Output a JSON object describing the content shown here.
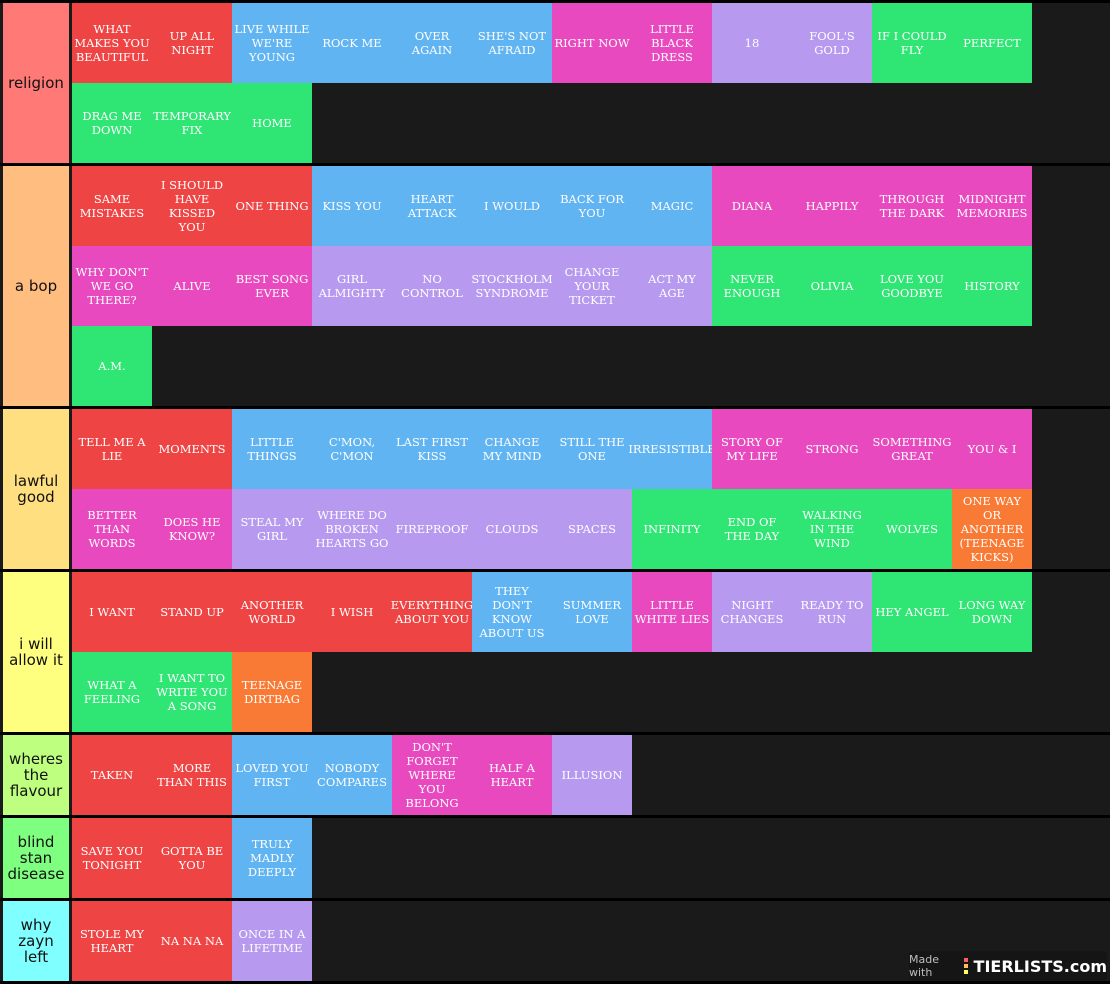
{
  "colors": {
    "red": "#ef4444",
    "blue": "#60b4f2",
    "pink": "#e849bf",
    "lavender": "#b79af0",
    "green": "#2fe574",
    "orange": "#f97a35",
    "background": "#1a1a1a"
  },
  "watermark": {
    "made_with": "Made with",
    "logo": "TIERLISTS.com"
  },
  "tiers": [
    {
      "label": "religion",
      "color": "#ff7a77",
      "items": [
        {
          "t": "WHAT MAKES YOU BEAUTIFUL",
          "c": "red"
        },
        {
          "t": "UP ALL NIGHT",
          "c": "red"
        },
        {
          "t": "LIVE WHILE WE'RE YOUNG",
          "c": "blue"
        },
        {
          "t": "ROCK ME",
          "c": "blue"
        },
        {
          "t": "OVER AGAIN",
          "c": "blue"
        },
        {
          "t": "SHE'S NOT AFRAID",
          "c": "blue"
        },
        {
          "t": "RIGHT NOW",
          "c": "pink"
        },
        {
          "t": "LITTLE BLACK DRESS",
          "c": "pink"
        },
        {
          "t": "18",
          "c": "lavender"
        },
        {
          "t": "FOOL'S GOLD",
          "c": "lavender"
        },
        {
          "t": "IF I COULD FLY",
          "c": "green"
        },
        {
          "t": "PERFECT",
          "c": "green"
        },
        {
          "t": "DRAG ME DOWN",
          "c": "green"
        },
        {
          "t": "TEMPORARY FIX",
          "c": "green"
        },
        {
          "t": "HOME",
          "c": "green"
        }
      ]
    },
    {
      "label": "a bop",
      "color": "#ffbe7f",
      "items": [
        {
          "t": "SAME MISTAKES",
          "c": "red"
        },
        {
          "t": "I SHOULD HAVE KISSED YOU",
          "c": "red"
        },
        {
          "t": "ONE THING",
          "c": "red"
        },
        {
          "t": "KISS YOU",
          "c": "blue"
        },
        {
          "t": "HEART ATTACK",
          "c": "blue"
        },
        {
          "t": "I WOULD",
          "c": "blue"
        },
        {
          "t": "BACK FOR YOU",
          "c": "blue"
        },
        {
          "t": "MAGIC",
          "c": "blue"
        },
        {
          "t": "DIANA",
          "c": "pink"
        },
        {
          "t": "HAPPILY",
          "c": "pink"
        },
        {
          "t": "THROUGH THE DARK",
          "c": "pink"
        },
        {
          "t": "MIDNIGHT MEMORIES",
          "c": "pink"
        },
        {
          "t": "WHY DON'T WE GO THERE?",
          "c": "pink"
        },
        {
          "t": "ALIVE",
          "c": "pink"
        },
        {
          "t": "BEST SONG EVER",
          "c": "pink"
        },
        {
          "t": "GIRL ALMIGHTY",
          "c": "lavender"
        },
        {
          "t": "NO CONTROL",
          "c": "lavender"
        },
        {
          "t": "STOCKHOLM SYNDROME",
          "c": "lavender"
        },
        {
          "t": "CHANGE YOUR TICKET",
          "c": "lavender"
        },
        {
          "t": "ACT MY AGE",
          "c": "lavender"
        },
        {
          "t": "NEVER ENOUGH",
          "c": "green"
        },
        {
          "t": "OLIVIA",
          "c": "green"
        },
        {
          "t": "LOVE YOU GOODBYE",
          "c": "green"
        },
        {
          "t": "HISTORY",
          "c": "green"
        },
        {
          "t": "A.M.",
          "c": "green"
        }
      ]
    },
    {
      "label": "lawful good",
      "color": "#ffdf7f",
      "items": [
        {
          "t": "TELL ME A LIE",
          "c": "red"
        },
        {
          "t": "MOMENTS",
          "c": "red"
        },
        {
          "t": "LITTLE THINGS",
          "c": "blue"
        },
        {
          "t": "C'MON, C'MON",
          "c": "blue"
        },
        {
          "t": "LAST FIRST KISS",
          "c": "blue"
        },
        {
          "t": "CHANGE MY MIND",
          "c": "blue"
        },
        {
          "t": "STILL THE ONE",
          "c": "blue"
        },
        {
          "t": "IRRESISTIBLE",
          "c": "blue"
        },
        {
          "t": "STORY OF MY LIFE",
          "c": "pink"
        },
        {
          "t": "STRONG",
          "c": "pink"
        },
        {
          "t": "SOMETHING GREAT",
          "c": "pink"
        },
        {
          "t": "YOU & I",
          "c": "pink"
        },
        {
          "t": "BETTER THAN WORDS",
          "c": "pink"
        },
        {
          "t": "DOES HE KNOW?",
          "c": "pink"
        },
        {
          "t": "STEAL MY GIRL",
          "c": "lavender"
        },
        {
          "t": "WHERE DO BROKEN HEARTS GO",
          "c": "lavender"
        },
        {
          "t": "FIREPROOF",
          "c": "lavender"
        },
        {
          "t": "CLOUDS",
          "c": "lavender"
        },
        {
          "t": "SPACES",
          "c": "lavender"
        },
        {
          "t": "INFINITY",
          "c": "green"
        },
        {
          "t": "END OF THE DAY",
          "c": "green"
        },
        {
          "t": "WALKING IN THE WIND",
          "c": "green"
        },
        {
          "t": "WOLVES",
          "c": "green"
        },
        {
          "t": "ONE WAY OR ANOTHER (TEENAGE KICKS)",
          "c": "orange"
        }
      ]
    },
    {
      "label": "i will allow it",
      "color": "#ffff7f",
      "items": [
        {
          "t": "I WANT",
          "c": "red"
        },
        {
          "t": "STAND UP",
          "c": "red"
        },
        {
          "t": "ANOTHER WORLD",
          "c": "red"
        },
        {
          "t": "I WISH",
          "c": "red"
        },
        {
          "t": "EVERYTHING ABOUT YOU",
          "c": "red"
        },
        {
          "t": "THEY DON'T KNOW ABOUT US",
          "c": "blue"
        },
        {
          "t": "SUMMER LOVE",
          "c": "blue"
        },
        {
          "t": "LITTLE WHITE LIES",
          "c": "pink"
        },
        {
          "t": "NIGHT CHANGES",
          "c": "lavender"
        },
        {
          "t": "READY TO RUN",
          "c": "lavender"
        },
        {
          "t": "HEY ANGEL",
          "c": "green"
        },
        {
          "t": "LONG WAY DOWN",
          "c": "green"
        },
        {
          "t": "WHAT A FEELING",
          "c": "green"
        },
        {
          "t": "I WANT TO WRITE YOU A SONG",
          "c": "green"
        },
        {
          "t": "TEENAGE DIRTBAG",
          "c": "orange"
        }
      ]
    },
    {
      "label": "wheres the flavour",
      "color": "#bfff7f",
      "items": [
        {
          "t": "TAKEN",
          "c": "red"
        },
        {
          "t": "MORE THAN THIS",
          "c": "red"
        },
        {
          "t": "LOVED YOU FIRST",
          "c": "blue"
        },
        {
          "t": "NOBODY COMPARES",
          "c": "blue"
        },
        {
          "t": "DON'T FORGET WHERE YOU BELONG",
          "c": "pink"
        },
        {
          "t": "HALF A HEART",
          "c": "pink"
        },
        {
          "t": "ILLUSION",
          "c": "lavender"
        }
      ]
    },
    {
      "label": "blind stan disease",
      "color": "#7fff7f",
      "items": [
        {
          "t": "SAVE YOU TONIGHT",
          "c": "red"
        },
        {
          "t": "GOTTA BE YOU",
          "c": "red"
        },
        {
          "t": "TRULY MADLY DEEPLY",
          "c": "blue"
        }
      ]
    },
    {
      "label": "why zayn left",
      "color": "#7fffff",
      "items": [
        {
          "t": "STOLE MY HEART",
          "c": "red"
        },
        {
          "t": "NA NA NA",
          "c": "red"
        },
        {
          "t": "ONCE IN A LIFETIME",
          "c": "lavender"
        }
      ]
    }
  ]
}
